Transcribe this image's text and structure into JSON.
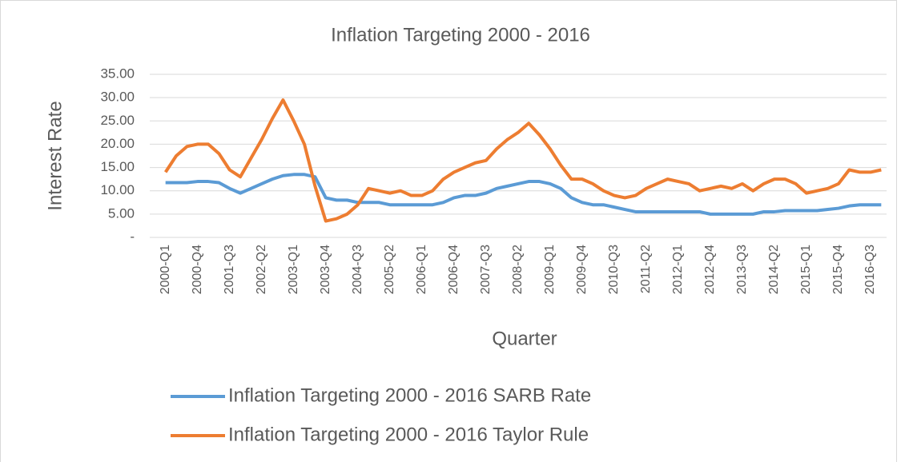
{
  "chart_data": {
    "type": "line",
    "title": "Inflation Targeting 2000 - 2016",
    "x_label": "Quarter",
    "y_label": "Interest Rate",
    "categories": [
      "2000-Q1",
      null,
      null,
      "2000-Q4",
      null,
      null,
      "2001-Q3",
      null,
      null,
      "2002-Q2",
      null,
      null,
      "2003-Q1",
      null,
      null,
      "2003-Q4",
      null,
      null,
      "2004-Q3",
      null,
      null,
      "2005-Q2",
      null,
      null,
      "2006-Q1",
      null,
      null,
      "2006-Q4",
      null,
      null,
      "2007-Q3",
      null,
      null,
      "2008-Q2",
      null,
      null,
      "2009-Q1",
      null,
      null,
      "2009-Q4",
      null,
      null,
      "2010-Q3",
      null,
      null,
      "2011-Q2",
      null,
      null,
      "2012-Q1",
      null,
      null,
      "2012-Q4",
      null,
      null,
      "2013-Q3",
      null,
      null,
      "2014-Q2",
      null,
      null,
      "2015-Q1",
      null,
      null,
      "2015-Q4",
      null,
      null,
      "2016-Q3",
      null
    ],
    "series": [
      {
        "name": "Inflation Targeting 2000 - 2016 SARB Rate",
        "color": "#5b9bd5",
        "values": [
          11.75,
          11.75,
          11.75,
          12,
          12,
          11.75,
          10.5,
          9.5,
          10.5,
          11.5,
          12.5,
          13.25,
          13.5,
          13.5,
          13,
          8.5,
          8,
          8,
          7.5,
          7.5,
          7.5,
          7,
          7,
          7,
          7,
          7,
          7.5,
          8.5,
          9,
          9,
          9.5,
          10.5,
          11,
          11.5,
          12,
          12,
          11.5,
          10.5,
          8.5,
          7.5,
          7,
          7,
          6.5,
          6,
          5.5,
          5.5,
          5.5,
          5.5,
          5.5,
          5.5,
          5.5,
          5,
          5,
          5,
          5,
          5,
          5.5,
          5.5,
          5.75,
          5.75,
          5.75,
          5.75,
          6,
          6.25,
          6.75,
          7,
          7,
          7
        ]
      },
      {
        "name": "Inflation Targeting 2000 - 2016 Taylor Rule",
        "color": "#ed7d31",
        "values": [
          14,
          17.5,
          19.5,
          20,
          20,
          18,
          14.5,
          13,
          17,
          21,
          25.5,
          29.5,
          25,
          20,
          11,
          3.5,
          4,
          5,
          7,
          10.5,
          10,
          9.5,
          10,
          9,
          9,
          10,
          12.5,
          14,
          15,
          16,
          16.5,
          19,
          21,
          22.5,
          24.5,
          22,
          19,
          15.5,
          12.5,
          12.5,
          11.5,
          10,
          9,
          8.5,
          9,
          10.5,
          11.5,
          12.5,
          12,
          11.5,
          10,
          10.5,
          11,
          10.5,
          11.5,
          10,
          11.5,
          12.5,
          12.5,
          11.5,
          9.5,
          10,
          10.5,
          11.5,
          14.5,
          14,
          14,
          14.5
        ]
      }
    ],
    "ylim": [
      0,
      35
    ],
    "yticks": [
      {
        "value": 0,
        "label": "-"
      },
      {
        "value": 5,
        "label": "5.00"
      },
      {
        "value": 10,
        "label": "10.00"
      },
      {
        "value": 15,
        "label": "15.00"
      },
      {
        "value": 20,
        "label": "20.00"
      },
      {
        "value": 25,
        "label": "25.00"
      },
      {
        "value": 30,
        "label": "30.00"
      },
      {
        "value": 35,
        "label": "35.00"
      }
    ],
    "grid": true,
    "legend": "bottom"
  }
}
